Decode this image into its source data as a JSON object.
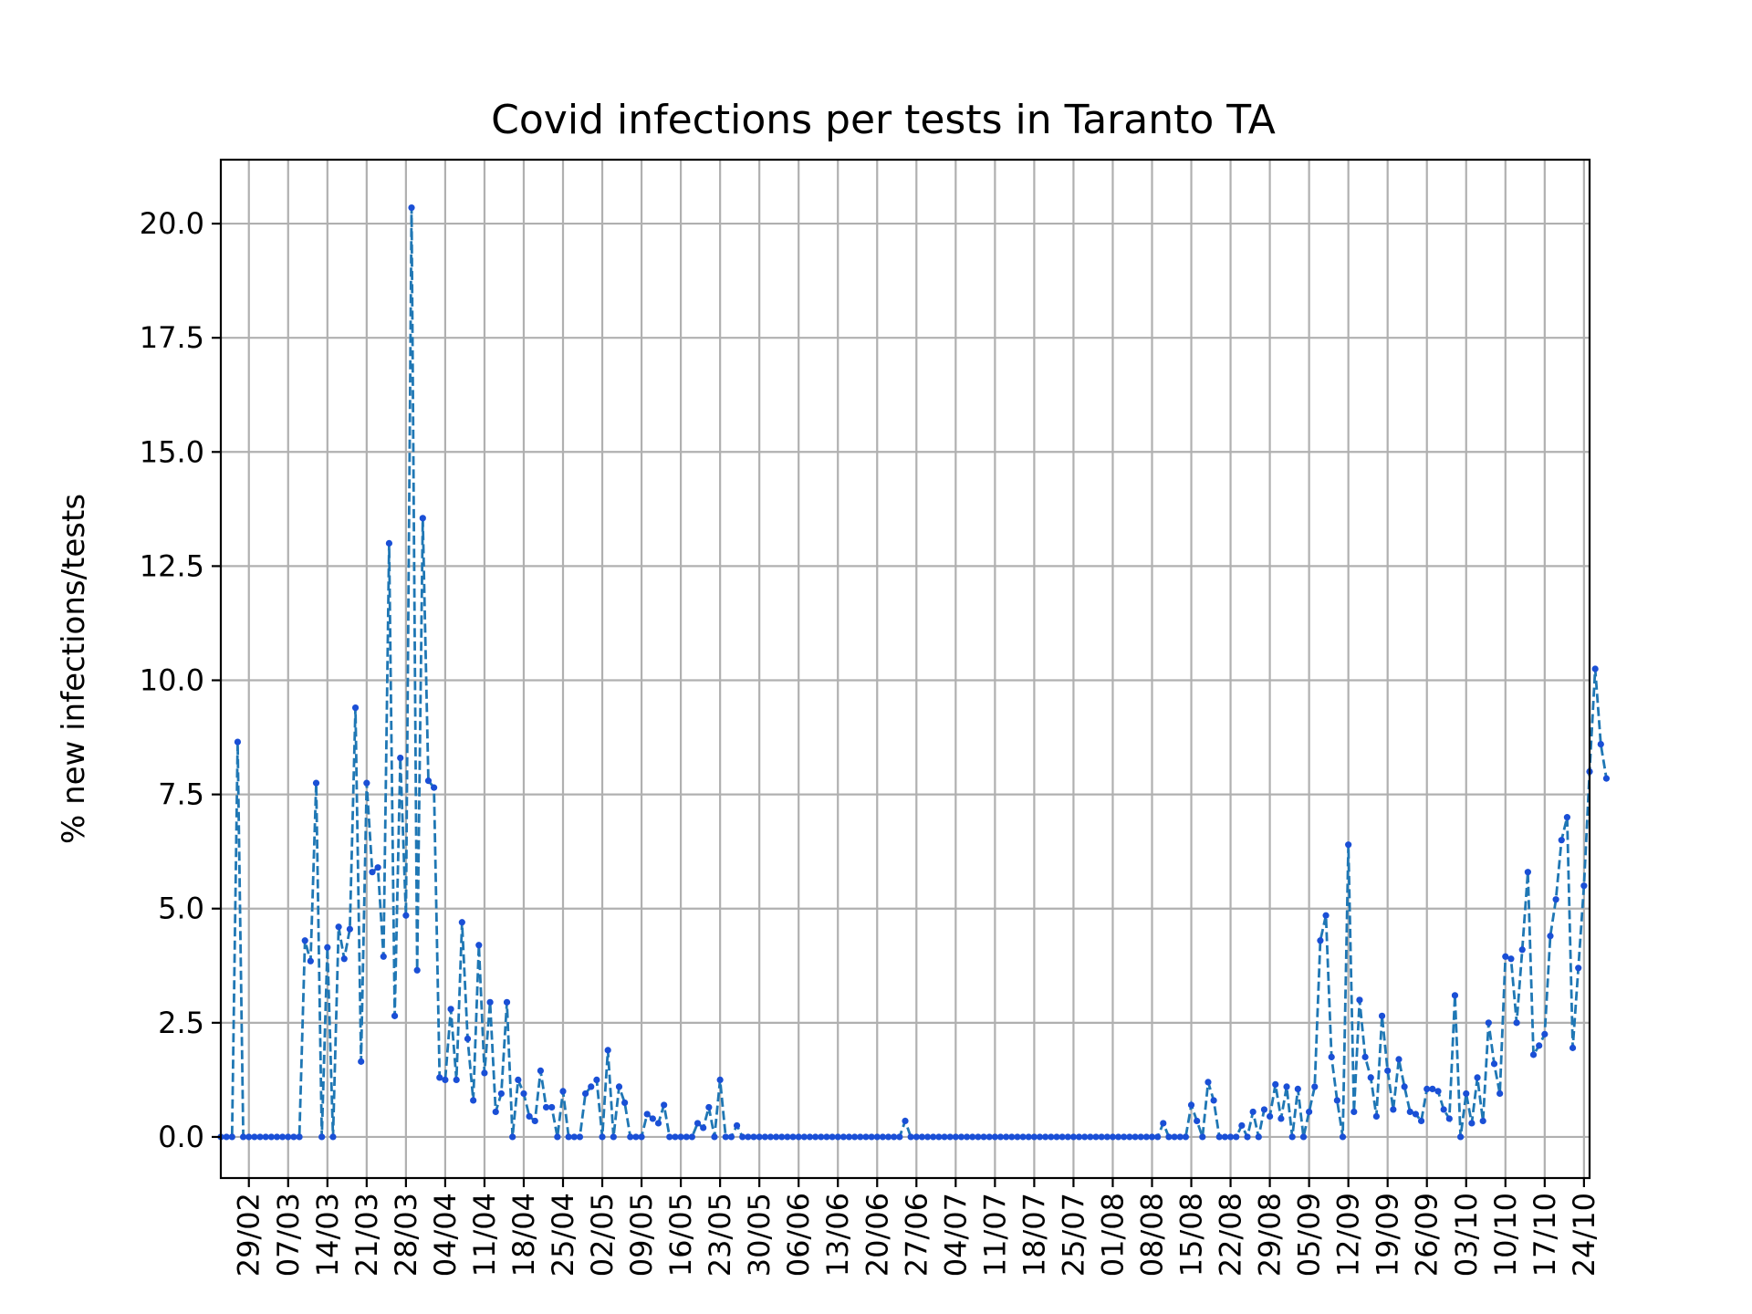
{
  "chart_data": {
    "type": "line",
    "title": "Covid infections per tests in Taranto TA",
    "xlabel": "",
    "ylabel": "% new infections/tests",
    "ylim": [
      -0.9,
      21.4
    ],
    "yticks": [
      0.0,
      2.5,
      5.0,
      7.5,
      10.0,
      12.5,
      15.0,
      17.5,
      20.0
    ],
    "ytick_labels": [
      "0.0",
      "2.5",
      "5.0",
      "7.5",
      "10.0",
      "12.5",
      "15.0",
      "17.5",
      "20.0"
    ],
    "x_axis": {
      "type": "date",
      "start": "2020-02-24",
      "end": "2020-10-25",
      "tick_dates": [
        "2020-02-29",
        "2020-03-07",
        "2020-03-14",
        "2020-03-21",
        "2020-03-28",
        "2020-04-04",
        "2020-04-11",
        "2020-04-18",
        "2020-04-25",
        "2020-05-02",
        "2020-05-09",
        "2020-05-16",
        "2020-05-23",
        "2020-05-30",
        "2020-06-06",
        "2020-06-13",
        "2020-06-20",
        "2020-06-27",
        "2020-07-04",
        "2020-07-11",
        "2020-07-18",
        "2020-07-25",
        "2020-08-01",
        "2020-08-08",
        "2020-08-15",
        "2020-08-22",
        "2020-08-29",
        "2020-09-05",
        "2020-09-12",
        "2020-09-19",
        "2020-09-26",
        "2020-10-03",
        "2020-10-10",
        "2020-10-17",
        "2020-10-24"
      ],
      "tick_labels": [
        "29/02",
        "07/03",
        "14/03",
        "21/03",
        "28/03",
        "04/04",
        "11/04",
        "18/04",
        "25/04",
        "02/05",
        "09/05",
        "16/05",
        "23/05",
        "30/05",
        "06/06",
        "13/06",
        "20/06",
        "27/06",
        "04/07",
        "11/07",
        "18/07",
        "25/07",
        "01/08",
        "08/08",
        "15/08",
        "22/08",
        "29/08",
        "05/09",
        "12/09",
        "19/09",
        "26/09",
        "03/10",
        "10/10",
        "17/10",
        "24/10"
      ]
    },
    "grid": true,
    "series": [
      {
        "color": "#1f77b4",
        "marker_color": "#1a4fd6",
        "line_style": "dashed",
        "marker": "point",
        "start_date": "2020-02-24",
        "values": [
          0,
          0,
          0,
          8.65,
          0,
          0,
          0,
          0,
          0,
          0,
          0,
          0,
          0,
          0,
          0,
          4.3,
          3.85,
          7.75,
          0,
          4.15,
          0,
          4.6,
          3.9,
          4.55,
          9.4,
          1.65,
          7.75,
          5.8,
          5.9,
          3.95,
          13.0,
          2.65,
          8.3,
          4.85,
          20.35,
          3.65,
          13.55,
          7.8,
          7.65,
          1.3,
          1.25,
          2.8,
          1.25,
          4.7,
          2.15,
          0.8,
          4.2,
          1.4,
          2.95,
          0.55,
          0.95,
          2.95,
          0,
          1.25,
          0.95,
          0.45,
          0.35,
          1.45,
          0.65,
          0.65,
          0,
          1.0,
          0,
          0,
          0,
          0.95,
          1.1,
          1.25,
          0,
          1.9,
          0,
          1.1,
          0.75,
          0,
          0,
          0,
          0.5,
          0.4,
          0.3,
          0.7,
          0,
          0,
          0,
          0,
          0,
          0.3,
          0.2,
          0.65,
          0,
          1.25,
          0,
          0,
          0.25,
          0,
          0,
          0,
          0,
          0,
          0,
          0,
          0,
          0,
          0,
          0,
          0,
          0,
          0,
          0,
          0,
          0,
          0,
          0,
          0,
          0,
          0,
          0,
          0,
          0,
          0,
          0,
          0,
          0,
          0.35,
          0,
          0,
          0,
          0,
          0,
          0,
          0,
          0,
          0,
          0,
          0,
          0,
          0,
          0,
          0,
          0,
          0,
          0,
          0,
          0,
          0,
          0,
          0,
          0,
          0,
          0,
          0,
          0,
          0,
          0,
          0,
          0,
          0,
          0,
          0,
          0,
          0,
          0,
          0,
          0,
          0,
          0,
          0,
          0,
          0,
          0.3,
          0,
          0,
          0,
          0,
          0.7,
          0.35,
          0,
          1.2,
          0.8,
          0,
          0,
          0,
          0,
          0.25,
          0,
          0.55,
          0,
          0.6,
          0.45,
          1.15,
          0.4,
          1.1,
          0,
          1.05,
          0,
          0.55,
          1.1,
          4.3,
          4.85,
          1.75,
          0.8,
          0,
          6.4,
          0.55,
          3.0,
          1.75,
          1.3,
          0.45,
          2.65,
          1.45,
          0.6,
          1.7,
          1.1,
          0.55,
          0.5,
          0.35,
          1.05,
          1.05,
          1.0,
          0.6,
          0.4,
          3.1,
          0,
          0.95,
          0.3,
          1.3,
          0.35,
          2.5,
          1.6,
          0.95,
          3.95,
          3.9,
          2.5,
          4.1,
          5.8,
          1.8,
          2.0,
          2.25,
          4.4,
          5.2,
          6.5,
          7.0,
          1.95,
          3.7,
          5.5,
          8.0,
          10.25,
          8.6,
          7.85
        ]
      }
    ]
  }
}
